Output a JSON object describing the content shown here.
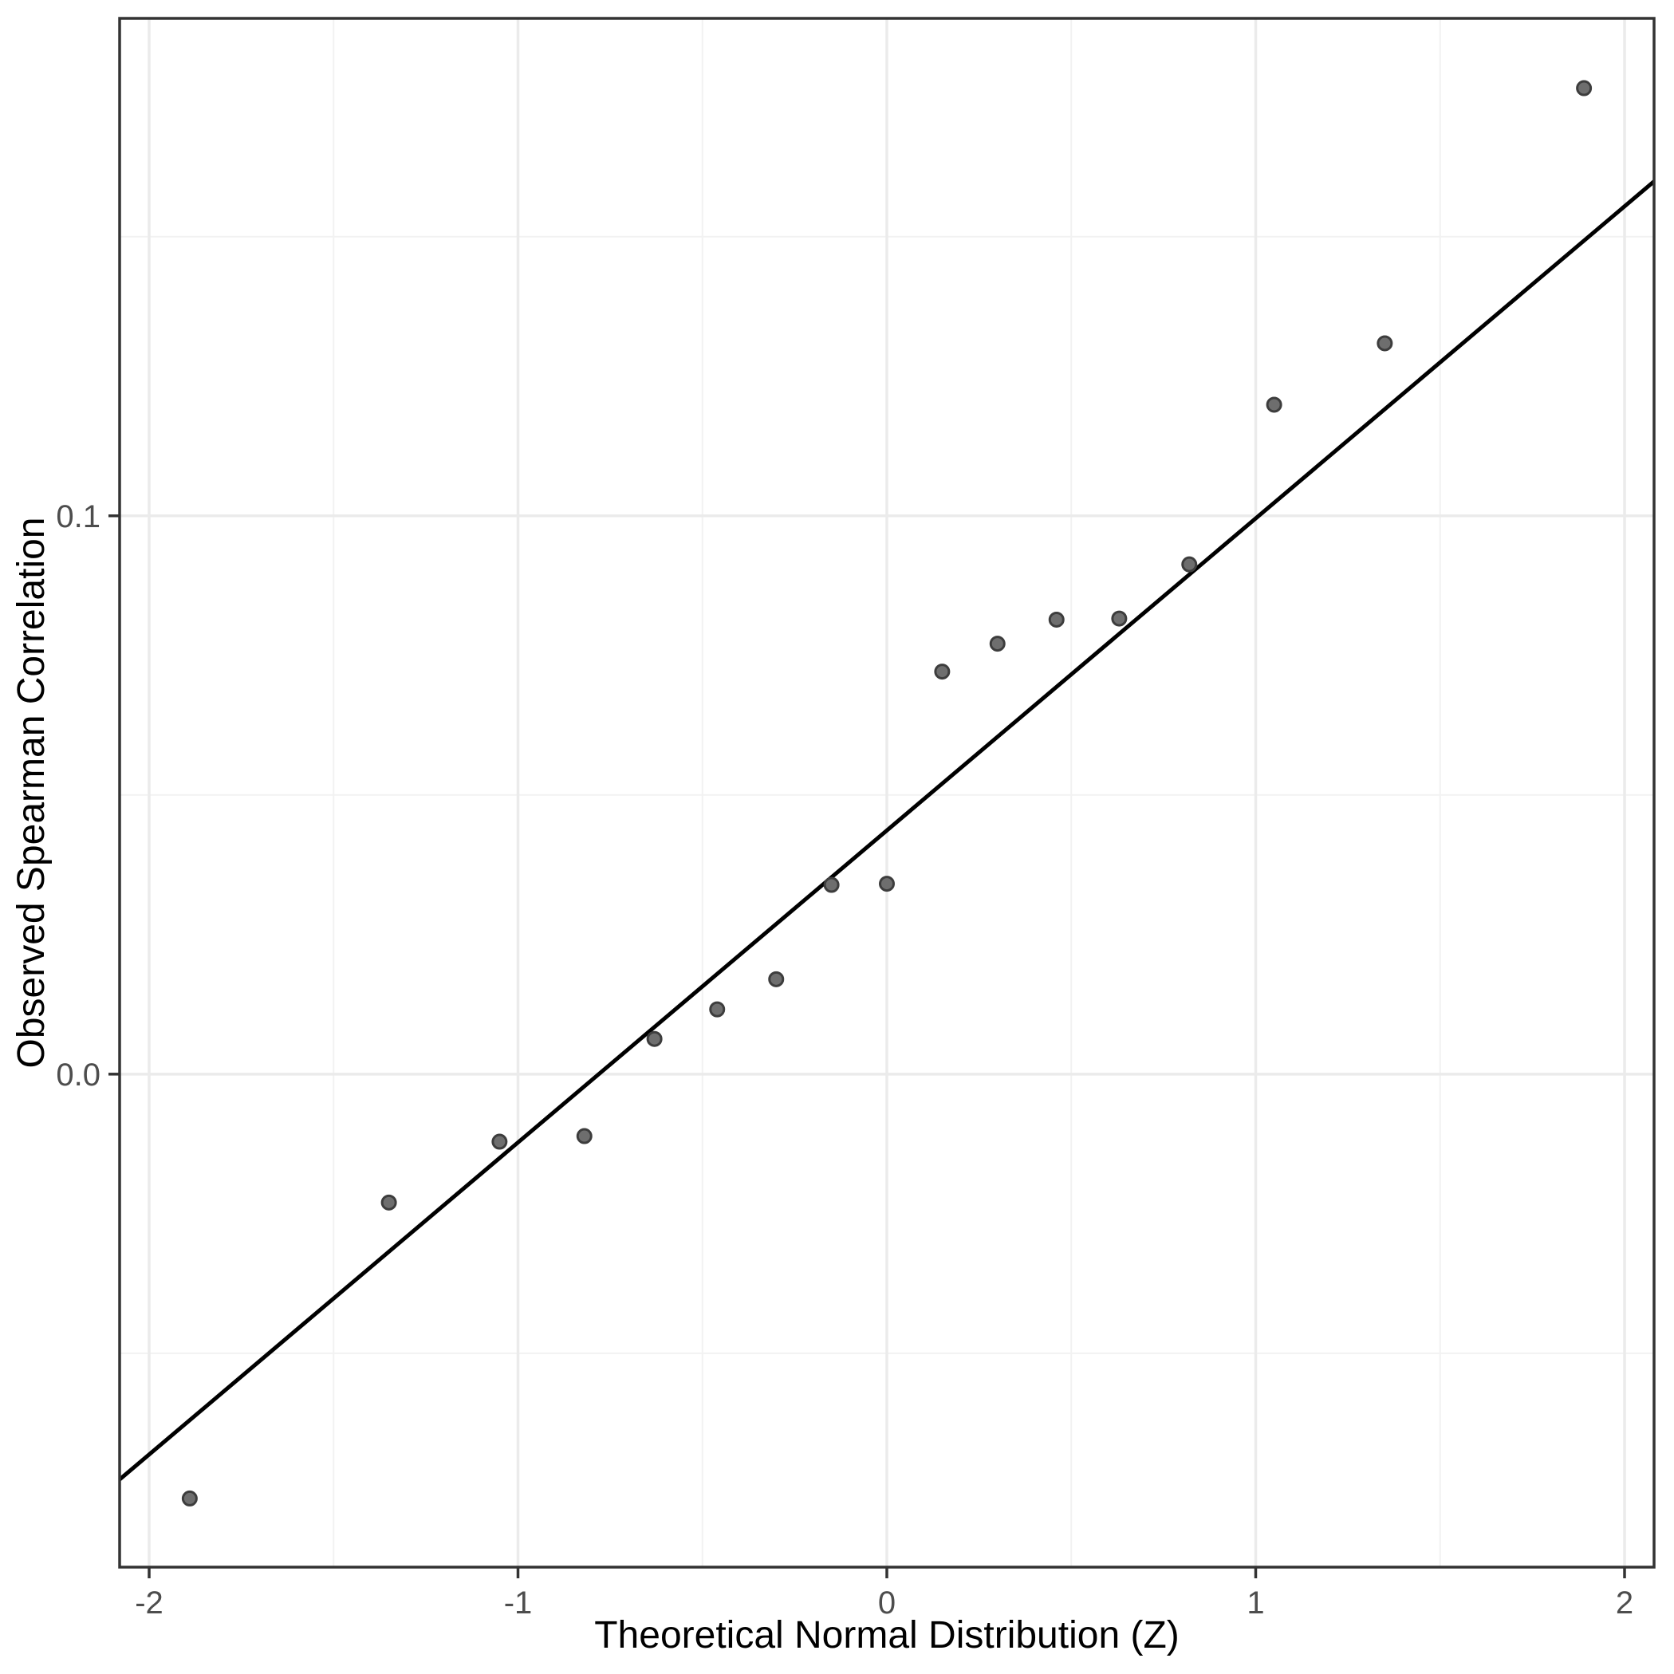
{
  "chart_data": {
    "type": "scatter",
    "title": "",
    "xlabel": "Theoretical Normal Distribution (Z)",
    "ylabel": "Observed Spearman Correlation",
    "xlim": [
      -2.08,
      2.08
    ],
    "ylim": [
      -0.0883,
      0.1891
    ],
    "grid": true,
    "legend_position": "none",
    "x_ticks": [
      {
        "value": -2,
        "label": "-2"
      },
      {
        "value": -1,
        "label": "-1"
      },
      {
        "value": 0,
        "label": "0"
      },
      {
        "value": 1,
        "label": "1"
      },
      {
        "value": 2,
        "label": "2"
      }
    ],
    "y_ticks": [
      {
        "value": 0.0,
        "label": "0.0"
      },
      {
        "value": 0.1,
        "label": "0.1"
      }
    ],
    "x_minor_ticks": [
      -1.5,
      -0.5,
      0.5,
      1.5
    ],
    "y_minor_ticks": [
      0.15,
      0.05,
      -0.05
    ],
    "points": [
      {
        "z": -1.89,
        "corr": -0.076
      },
      {
        "z": -1.35,
        "corr": -0.023
      },
      {
        "z": -1.05,
        "corr": -0.0121
      },
      {
        "z": -0.82,
        "corr": -0.0111
      },
      {
        "z": -0.63,
        "corr": 0.0063
      },
      {
        "z": -0.46,
        "corr": 0.0116
      },
      {
        "z": -0.3,
        "corr": 0.017
      },
      {
        "z": -0.15,
        "corr": 0.0339
      },
      {
        "z": 0.0,
        "corr": 0.0341
      },
      {
        "z": 0.15,
        "corr": 0.0721
      },
      {
        "z": 0.3,
        "corr": 0.0771
      },
      {
        "z": 0.46,
        "corr": 0.0814
      },
      {
        "z": 0.63,
        "corr": 0.0816
      },
      {
        "z": 0.82,
        "corr": 0.0913
      },
      {
        "z": 1.05,
        "corr": 0.1199
      },
      {
        "z": 1.35,
        "corr": 0.1309
      },
      {
        "z": 1.89,
        "corr": 0.1766
      }
    ],
    "trend_line": {
      "x": [
        -2.08,
        2.08
      ],
      "y": [
        -0.0726,
        0.1599
      ]
    },
    "style": {
      "background": "#ffffff",
      "panel_background": "#ffffff",
      "panel_border": "#333333",
      "grid_major": "#ebebeb",
      "grid_minor": "#f2f2f2",
      "trend_line_color": "#000000",
      "point_fill": "#6e6e6e",
      "point_stroke": "#3d3d3d",
      "tick_color": "#333333",
      "tick_label_color": "#4d4d4d",
      "axis_title_color": "#000000"
    }
  }
}
